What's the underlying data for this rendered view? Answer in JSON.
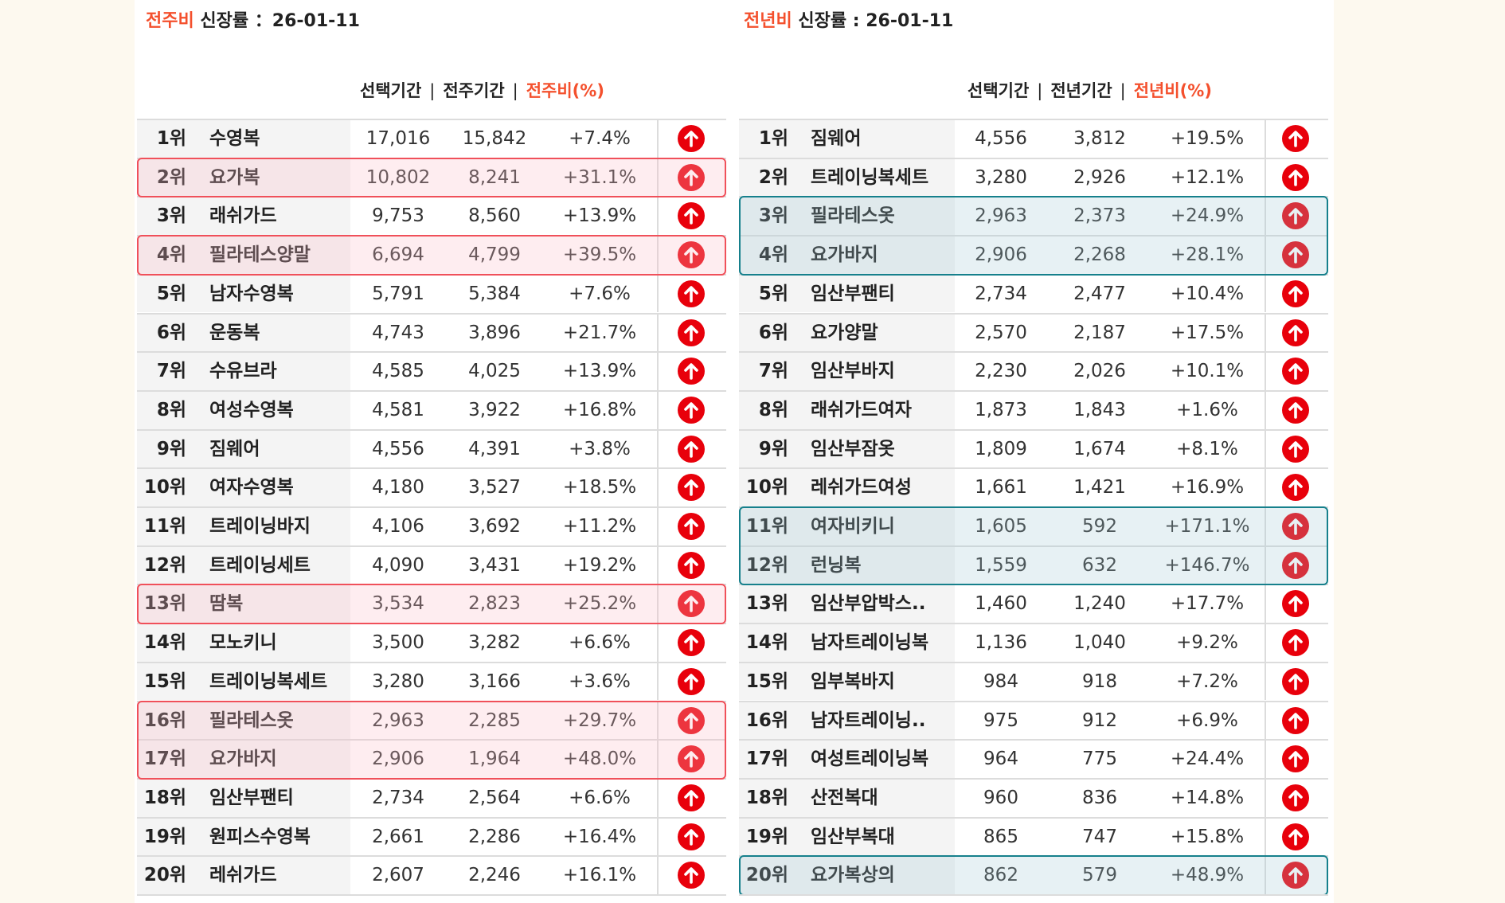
{
  "colors": {
    "accent": "#f4502d",
    "up_icon": "#e8000b",
    "weekly_highlight": "#f0505a",
    "yearly_highlight": "#16808c"
  },
  "weekly": {
    "title_accent": "전주비",
    "title_rest": "신장률 ：26-01-11",
    "headers": [
      "선택기간",
      "전주기간",
      "전주비(%)"
    ],
    "separator": "|",
    "rows": [
      {
        "rank": "1위",
        "name": "수영복",
        "current": "17,016",
        "previous": "15,842",
        "change": "+7.4%",
        "highlighted": false,
        "icon": "arrow-up-circle-icon"
      },
      {
        "rank": "2위",
        "name": "요가복",
        "current": "10,802",
        "previous": "8,241",
        "change": "+31.1%",
        "highlighted": true,
        "icon": "arrow-up-circle-icon"
      },
      {
        "rank": "3위",
        "name": "래쉬가드",
        "current": "9,753",
        "previous": "8,560",
        "change": "+13.9%",
        "highlighted": false,
        "icon": "arrow-up-circle-icon"
      },
      {
        "rank": "4위",
        "name": "필라테스양말",
        "current": "6,694",
        "previous": "4,799",
        "change": "+39.5%",
        "highlighted": true,
        "icon": "arrow-up-circle-icon"
      },
      {
        "rank": "5위",
        "name": "남자수영복",
        "current": "5,791",
        "previous": "5,384",
        "change": "+7.6%",
        "highlighted": false,
        "icon": "arrow-up-circle-icon"
      },
      {
        "rank": "6위",
        "name": "운동복",
        "current": "4,743",
        "previous": "3,896",
        "change": "+21.7%",
        "highlighted": false,
        "icon": "arrow-up-circle-icon"
      },
      {
        "rank": "7위",
        "name": "수유브라",
        "current": "4,585",
        "previous": "4,025",
        "change": "+13.9%",
        "highlighted": false,
        "icon": "arrow-up-circle-icon"
      },
      {
        "rank": "8위",
        "name": "여성수영복",
        "current": "4,581",
        "previous": "3,922",
        "change": "+16.8%",
        "highlighted": false,
        "icon": "arrow-up-circle-icon"
      },
      {
        "rank": "9위",
        "name": "짐웨어",
        "current": "4,556",
        "previous": "4,391",
        "change": "+3.8%",
        "highlighted": false,
        "icon": "arrow-up-circle-icon"
      },
      {
        "rank": "10위",
        "name": "여자수영복",
        "current": "4,180",
        "previous": "3,527",
        "change": "+18.5%",
        "highlighted": false,
        "icon": "arrow-up-circle-icon"
      },
      {
        "rank": "11위",
        "name": "트레이닝바지",
        "current": "4,106",
        "previous": "3,692",
        "change": "+11.2%",
        "highlighted": false,
        "icon": "arrow-up-circle-icon"
      },
      {
        "rank": "12위",
        "name": "트레이닝세트",
        "current": "4,090",
        "previous": "3,431",
        "change": "+19.2%",
        "highlighted": false,
        "icon": "arrow-up-circle-icon"
      },
      {
        "rank": "13위",
        "name": "땀복",
        "current": "3,534",
        "previous": "2,823",
        "change": "+25.2%",
        "highlighted": true,
        "icon": "arrow-up-circle-icon"
      },
      {
        "rank": "14위",
        "name": "모노키니",
        "current": "3,500",
        "previous": "3,282",
        "change": "+6.6%",
        "highlighted": false,
        "icon": "arrow-up-circle-icon"
      },
      {
        "rank": "15위",
        "name": "트레이닝복세트",
        "current": "3,280",
        "previous": "3,166",
        "change": "+3.6%",
        "highlighted": false,
        "icon": "arrow-up-circle-icon"
      },
      {
        "rank": "16위",
        "name": "필라테스옷",
        "current": "2,963",
        "previous": "2,285",
        "change": "+29.7%",
        "highlighted": true,
        "icon": "arrow-up-circle-icon"
      },
      {
        "rank": "17위",
        "name": "요가바지",
        "current": "2,906",
        "previous": "1,964",
        "change": "+48.0%",
        "highlighted": true,
        "icon": "arrow-up-circle-icon"
      },
      {
        "rank": "18위",
        "name": "임산부팬티",
        "current": "2,734",
        "previous": "2,564",
        "change": "+6.6%",
        "highlighted": false,
        "icon": "arrow-up-circle-icon"
      },
      {
        "rank": "19위",
        "name": "원피스수영복",
        "current": "2,661",
        "previous": "2,286",
        "change": "+16.4%",
        "highlighted": false,
        "icon": "arrow-up-circle-icon"
      },
      {
        "rank": "20위",
        "name": "레쉬가드",
        "current": "2,607",
        "previous": "2,246",
        "change": "+16.1%",
        "highlighted": false,
        "icon": "arrow-up-circle-icon"
      }
    ]
  },
  "yearly": {
    "title_accent": "전년비",
    "title_rest": "신장률 : 26-01-11",
    "headers": [
      "선택기간",
      "전년기간",
      "전년비(%)"
    ],
    "separator": "|",
    "rows": [
      {
        "rank": "1위",
        "name": "짐웨어",
        "current": "4,556",
        "previous": "3,812",
        "change": "+19.5%",
        "highlighted": false,
        "icon": "arrow-up-circle-icon"
      },
      {
        "rank": "2위",
        "name": "트레이닝복세트",
        "current": "3,280",
        "previous": "2,926",
        "change": "+12.1%",
        "highlighted": false,
        "icon": "arrow-up-circle-icon"
      },
      {
        "rank": "3위",
        "name": "필라테스옷",
        "current": "2,963",
        "previous": "2,373",
        "change": "+24.9%",
        "highlighted": true,
        "icon": "arrow-up-circle-icon"
      },
      {
        "rank": "4위",
        "name": "요가바지",
        "current": "2,906",
        "previous": "2,268",
        "change": "+28.1%",
        "highlighted": true,
        "icon": "arrow-up-circle-icon"
      },
      {
        "rank": "5위",
        "name": "임산부팬티",
        "current": "2,734",
        "previous": "2,477",
        "change": "+10.4%",
        "highlighted": false,
        "icon": "arrow-up-circle-icon"
      },
      {
        "rank": "6위",
        "name": "요가양말",
        "current": "2,570",
        "previous": "2,187",
        "change": "+17.5%",
        "highlighted": false,
        "icon": "arrow-up-circle-icon"
      },
      {
        "rank": "7위",
        "name": "임산부바지",
        "current": "2,230",
        "previous": "2,026",
        "change": "+10.1%",
        "highlighted": false,
        "icon": "arrow-up-circle-icon"
      },
      {
        "rank": "8위",
        "name": "래쉬가드여자",
        "current": "1,873",
        "previous": "1,843",
        "change": "+1.6%",
        "highlighted": false,
        "icon": "arrow-up-circle-icon"
      },
      {
        "rank": "9위",
        "name": "임산부잠옷",
        "current": "1,809",
        "previous": "1,674",
        "change": "+8.1%",
        "highlighted": false,
        "icon": "arrow-up-circle-icon"
      },
      {
        "rank": "10위",
        "name": "레쉬가드여성",
        "current": "1,661",
        "previous": "1,421",
        "change": "+16.9%",
        "highlighted": false,
        "icon": "arrow-up-circle-icon"
      },
      {
        "rank": "11위",
        "name": "여자비키니",
        "current": "1,605",
        "previous": "592",
        "change": "+171.1%",
        "highlighted": true,
        "icon": "arrow-up-circle-icon"
      },
      {
        "rank": "12위",
        "name": "런닝복",
        "current": "1,559",
        "previous": "632",
        "change": "+146.7%",
        "highlighted": true,
        "icon": "arrow-up-circle-icon"
      },
      {
        "rank": "13위",
        "name": "임산부압박스..",
        "current": "1,460",
        "previous": "1,240",
        "change": "+17.7%",
        "highlighted": false,
        "icon": "arrow-up-circle-icon"
      },
      {
        "rank": "14위",
        "name": "남자트레이닝복",
        "current": "1,136",
        "previous": "1,040",
        "change": "+9.2%",
        "highlighted": false,
        "icon": "arrow-up-circle-icon"
      },
      {
        "rank": "15위",
        "name": "임부복바지",
        "current": "984",
        "previous": "918",
        "change": "+7.2%",
        "highlighted": false,
        "icon": "arrow-up-circle-icon"
      },
      {
        "rank": "16위",
        "name": "남자트레이닝..",
        "current": "975",
        "previous": "912",
        "change": "+6.9%",
        "highlighted": false,
        "icon": "arrow-up-circle-icon"
      },
      {
        "rank": "17위",
        "name": "여성트레이닝복",
        "current": "964",
        "previous": "775",
        "change": "+24.4%",
        "highlighted": false,
        "icon": "arrow-up-circle-icon"
      },
      {
        "rank": "18위",
        "name": "산전복대",
        "current": "960",
        "previous": "836",
        "change": "+14.8%",
        "highlighted": false,
        "icon": "arrow-up-circle-icon"
      },
      {
        "rank": "19위",
        "name": "임산부복대",
        "current": "865",
        "previous": "747",
        "change": "+15.8%",
        "highlighted": false,
        "icon": "arrow-up-circle-icon"
      },
      {
        "rank": "20위",
        "name": "요가복상의",
        "current": "862",
        "previous": "579",
        "change": "+48.9%",
        "highlighted": true,
        "icon": "arrow-up-circle-icon"
      }
    ]
  }
}
